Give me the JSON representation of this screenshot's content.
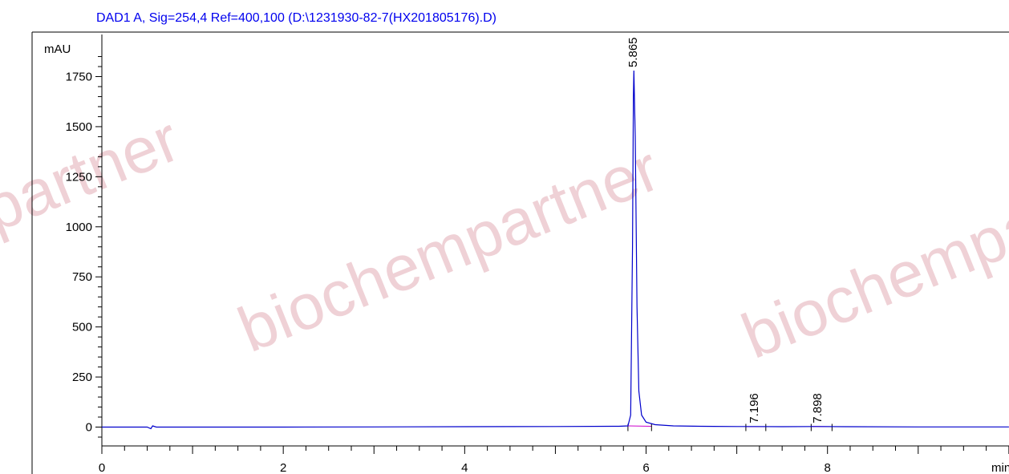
{
  "header": {
    "text": "DAD1 A, Sig=254,4 Ref=400,100 (D:\\1231930-82-7(HX201805176).D)"
  },
  "watermarks": [
    "biochempartner",
    "biochempartner",
    "partner"
  ],
  "colors": {
    "trace": "#0000cc",
    "baseline": "#cc00cc",
    "axis": "#000000",
    "title": "#0000ee",
    "watermark": "#e9c2c8"
  },
  "chart_data": {
    "type": "line",
    "title": "DAD1 A, Sig=254,4 Ref=400,100 (D:\\1231930-82-7(HX201805176).D)",
    "ylabel": "mAU",
    "xlabel": "min",
    "xlim": [
      0,
      10
    ],
    "ylim": [
      -100,
      1900
    ],
    "x_ticks": [
      0,
      2,
      4,
      6,
      8
    ],
    "y_ticks": [
      0,
      250,
      500,
      750,
      1000,
      1250,
      1500,
      1750
    ],
    "grid": false,
    "series": [
      {
        "x": [
          0.0,
          0.5,
          0.54,
          0.56,
          0.6,
          1.0,
          2.0,
          3.0,
          4.0,
          5.0,
          5.7,
          5.8,
          5.83,
          5.85,
          5.86,
          5.865,
          5.88,
          5.9,
          5.92,
          5.95,
          6.0,
          6.1,
          6.3,
          6.6,
          7.0,
          7.196,
          7.5,
          7.898,
          8.2,
          9.0,
          10.0
        ],
        "y": [
          0,
          0,
          -8,
          6,
          0,
          0,
          0,
          1,
          2,
          3,
          4,
          6,
          60,
          900,
          1650,
          1780,
          1450,
          600,
          180,
          60,
          25,
          12,
          6,
          4,
          3,
          3,
          2,
          3,
          2,
          1,
          1
        ]
      }
    ],
    "peaks": [
      {
        "rt": "5.865",
        "x": 5.865,
        "y": 1780
      },
      {
        "rt": "7.196",
        "x": 7.196,
        "y": 3
      },
      {
        "rt": "7.898",
        "x": 7.898,
        "y": 3
      }
    ]
  }
}
